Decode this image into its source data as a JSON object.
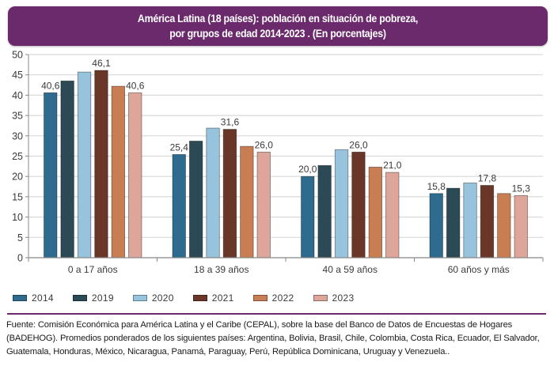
{
  "header": {
    "title_line1": "América Latina (18 países): población en situación de pobreza,",
    "title_line2": "por grupos de edad 2014-2023 . (En porcentajes)"
  },
  "chart_data": {
    "type": "bar",
    "title": "América Latina (18 países): población en situación de pobreza, por grupos de edad 2014-2023 . (En porcentajes)",
    "xlabel": "",
    "ylabel": "",
    "ylim": [
      0,
      50
    ],
    "yticks": [
      0,
      5,
      10,
      15,
      20,
      25,
      30,
      35,
      40,
      45,
      50
    ],
    "grid": true,
    "legend_position": "bottom-left",
    "categories": [
      "0 a 17 años",
      "18 a 39 años",
      "40 a 59 años",
      "60 años y más"
    ],
    "series": [
      {
        "name": "2014",
        "color": "#2e6b8e",
        "values": [
          40.6,
          25.4,
          20.0,
          15.8
        ],
        "labels": [
          "40,6",
          "25,4",
          "20,0",
          "15,8"
        ]
      },
      {
        "name": "2019",
        "color": "#2c4a56",
        "values": [
          43.5,
          28.7,
          22.7,
          17.1
        ],
        "labels": [
          null,
          null,
          null,
          null
        ]
      },
      {
        "name": "2020",
        "color": "#97c4dc",
        "values": [
          45.7,
          31.9,
          26.6,
          18.4
        ],
        "labels": [
          null,
          null,
          null,
          null
        ]
      },
      {
        "name": "2021",
        "color": "#6a3628",
        "values": [
          46.1,
          31.6,
          26.0,
          17.8
        ],
        "labels": [
          "46,1",
          "31,6",
          "26,0",
          "17,8"
        ]
      },
      {
        "name": "2022",
        "color": "#c97d52",
        "values": [
          42.2,
          27.4,
          22.3,
          15.8
        ],
        "labels": [
          null,
          null,
          null,
          null
        ]
      },
      {
        "name": "2023",
        "color": "#dea69a",
        "values": [
          40.6,
          26.0,
          21.0,
          15.3
        ],
        "labels": [
          "40,6",
          "26,0",
          "21,0",
          "15,3"
        ]
      }
    ]
  },
  "footnote": "Fuente: Comisión Económica para América Latina y el Caribe (CEPAL), sobre la base del Banco de Datos de Encuestas de Hogares (BADEHOG). Promedios ponderados de los siguientes países: Argentina, Bolivia, Brasil, Chile, Colombia, Costa Rica, Ecuador, El Salvador, Guatemala, Honduras, México, Nicaragua, Panamá, Paraguay, Perú, República Dominicana, Uruguay y Venezuela.."
}
